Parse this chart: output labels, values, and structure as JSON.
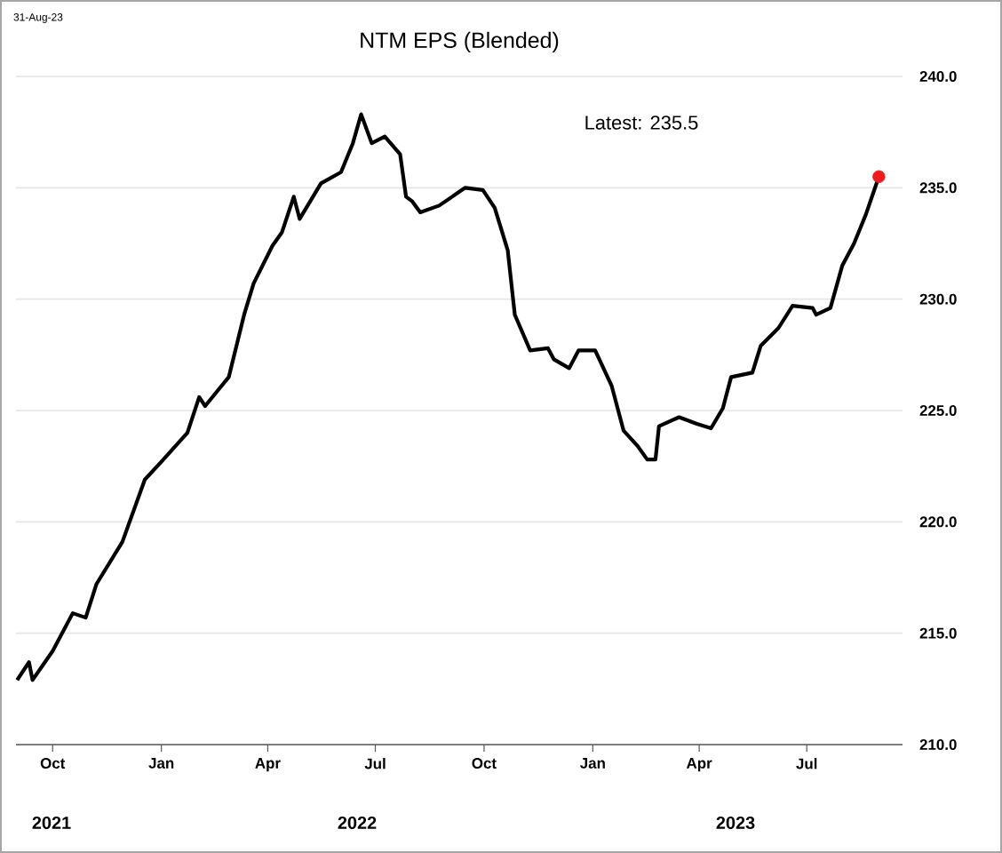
{
  "chart_data": {
    "type": "line",
    "title": "NTM EPS (Blended)",
    "x": [
      "2021-09-01",
      "2021-09-11",
      "2021-09-14",
      "2021-10-01",
      "2021-10-18",
      "2021-10-29",
      "2021-11-07",
      "2021-11-29",
      "2021-12-18",
      "2022-01-01",
      "2022-01-23",
      "2022-02-02",
      "2022-02-07",
      "2022-02-27",
      "2022-03-12",
      "2022-03-20",
      "2022-04-05",
      "2022-04-13",
      "2022-04-23",
      "2022-04-28",
      "2022-05-16",
      "2022-06-02",
      "2022-06-12",
      "2022-06-19",
      "2022-06-28",
      "2022-07-09",
      "2022-07-22",
      "2022-07-27",
      "2022-08-01",
      "2022-08-08",
      "2022-08-24",
      "2022-09-15",
      "2022-09-30",
      "2022-10-10",
      "2022-10-21",
      "2022-10-27",
      "2022-11-09",
      "2022-11-24",
      "2022-11-29",
      "2022-12-12",
      "2022-12-20",
      "2023-01-03",
      "2023-01-17",
      "2023-01-27",
      "2023-02-08",
      "2023-02-16",
      "2023-02-23",
      "2023-02-26",
      "2023-03-15",
      "2023-03-30",
      "2023-04-11",
      "2023-04-21",
      "2023-04-28",
      "2023-05-16",
      "2023-05-23",
      "2023-06-07",
      "2023-06-19",
      "2023-07-06",
      "2023-07-09",
      "2023-07-21",
      "2023-07-31",
      "2023-08-10",
      "2023-08-20",
      "2023-08-31"
    ],
    "series": [
      {
        "color": "#000000",
        "values": [
          212.9,
          213.7,
          212.9,
          214.2,
          215.9,
          215.7,
          217.2,
          219.1,
          221.9,
          222.7,
          224.0,
          225.6,
          225.2,
          226.5,
          229.3,
          230.7,
          232.4,
          233.0,
          234.6,
          233.6,
          235.2,
          235.7,
          237.0,
          238.3,
          237.0,
          237.3,
          236.5,
          234.6,
          234.4,
          233.9,
          234.2,
          235.0,
          234.9,
          234.1,
          232.2,
          229.3,
          227.7,
          227.8,
          227.3,
          226.9,
          227.7,
          227.7,
          226.1,
          224.1,
          223.4,
          222.8,
          222.8,
          224.3,
          224.7,
          224.4,
          224.2,
          225.1,
          226.5,
          226.7,
          227.9,
          228.7,
          229.7,
          229.6,
          229.3,
          229.6,
          231.5,
          232.5,
          233.8,
          235.5
        ]
      },
      {
        "type": "scatter",
        "color": "#ee1c1c",
        "marker": "circle",
        "x": [
          "2023-08-31"
        ],
        "values": [
          235.5
        ]
      }
    ],
    "xlim": [
      "2021-08-31",
      "2023-09-20"
    ],
    "xticks": [
      {
        "value": "2021-10-01",
        "label": "Oct"
      },
      {
        "value": "2022-01-01",
        "label": "Jan"
      },
      {
        "value": "2022-04-01",
        "label": "Apr"
      },
      {
        "value": "2022-07-01",
        "label": "Jul"
      },
      {
        "value": "2022-10-01",
        "label": "Oct"
      },
      {
        "value": "2023-01-01",
        "label": "Jan"
      },
      {
        "value": "2023-04-01",
        "label": "Apr"
      },
      {
        "value": "2023-07-01",
        "label": "Jul"
      }
    ],
    "ylim": [
      210,
      240
    ],
    "yticks": [
      {
        "value": 210,
        "label": "210.0"
      },
      {
        "value": 215,
        "label": "215.0"
      },
      {
        "value": 220,
        "label": "220.0"
      },
      {
        "value": 225,
        "label": "225.0"
      },
      {
        "value": 230,
        "label": "230.0"
      },
      {
        "value": 235,
        "label": "235.0"
      },
      {
        "value": 240,
        "label": "240.0"
      }
    ],
    "grid": "y",
    "annotations": [
      "31-Aug-23",
      "Latest:  235.5",
      "2021",
      "2022",
      "2023"
    ]
  }
}
